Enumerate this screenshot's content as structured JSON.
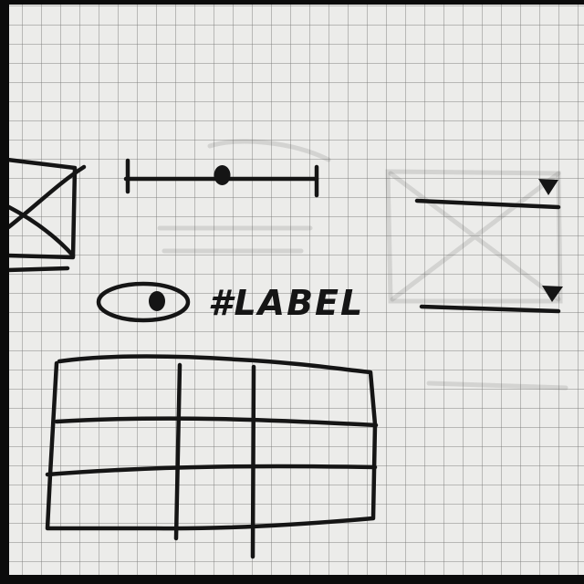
{
  "wireframe": {
    "label_text": "#LABEL",
    "slider": {
      "value": 0.5
    },
    "table": {
      "rows": 3,
      "columns": 3
    },
    "dropdown_indicator_icon": "triangle-down-icon",
    "image_placeholder_icon": "crossed-box-icon",
    "ink_color": "#151515",
    "paper_color": "#ececea"
  }
}
